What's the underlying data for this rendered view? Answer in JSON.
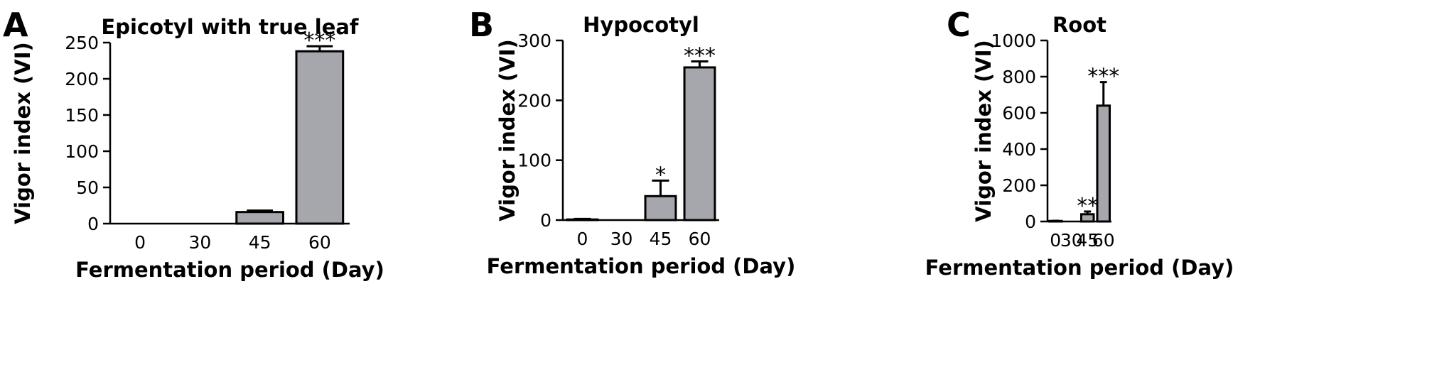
{
  "chart_data": [
    {
      "type": "bar",
      "panel_label": "A",
      "title": "Epicotyl with true leaf",
      "xlabel": "Fermentation period (Day)",
      "ylabel": "Vigor index (VI)",
      "categories": [
        "0",
        "30",
        "45",
        "60"
      ],
      "values": [
        0,
        0,
        16,
        238
      ],
      "errors": [
        0,
        0,
        2,
        7
      ],
      "annotations": [
        "",
        "",
        "",
        "***"
      ],
      "ylim": [
        0,
        250
      ],
      "yticks": [
        "0",
        "50",
        "100",
        "150",
        "200",
        "250"
      ],
      "bar_color": "#a6a6ad",
      "grid": false
    },
    {
      "type": "bar",
      "panel_label": "B",
      "title": "Hypocotyl",
      "xlabel": "Fermentation period (Day)",
      "ylabel": "Vigor index (VI)",
      "categories": [
        "0",
        "30",
        "45",
        "60"
      ],
      "values": [
        1,
        0,
        40,
        255
      ],
      "errors": [
        1,
        0,
        26,
        10
      ],
      "annotations": [
        "",
        "",
        "*",
        "***"
      ],
      "ylim": [
        0,
        300
      ],
      "yticks": [
        "0",
        "100",
        "200",
        "300"
      ],
      "bar_color": "#a6a6ad",
      "grid": false
    },
    {
      "type": "bar",
      "panel_label": "C",
      "title": "Root",
      "xlabel": "Fermentation period (Day)",
      "ylabel": "Vigor index (VI)",
      "categories": [
        "0",
        "30",
        "45",
        "60"
      ],
      "values": [
        3,
        0,
        40,
        640
      ],
      "errors": [
        1,
        0,
        15,
        130
      ],
      "annotations": [
        "",
        "",
        "**",
        "***"
      ],
      "ylim": [
        0,
        1000
      ],
      "yticks": [
        "0",
        "200",
        "400",
        "600",
        "800",
        "1000"
      ],
      "bar_color": "#a6a6ad",
      "grid": false
    }
  ]
}
